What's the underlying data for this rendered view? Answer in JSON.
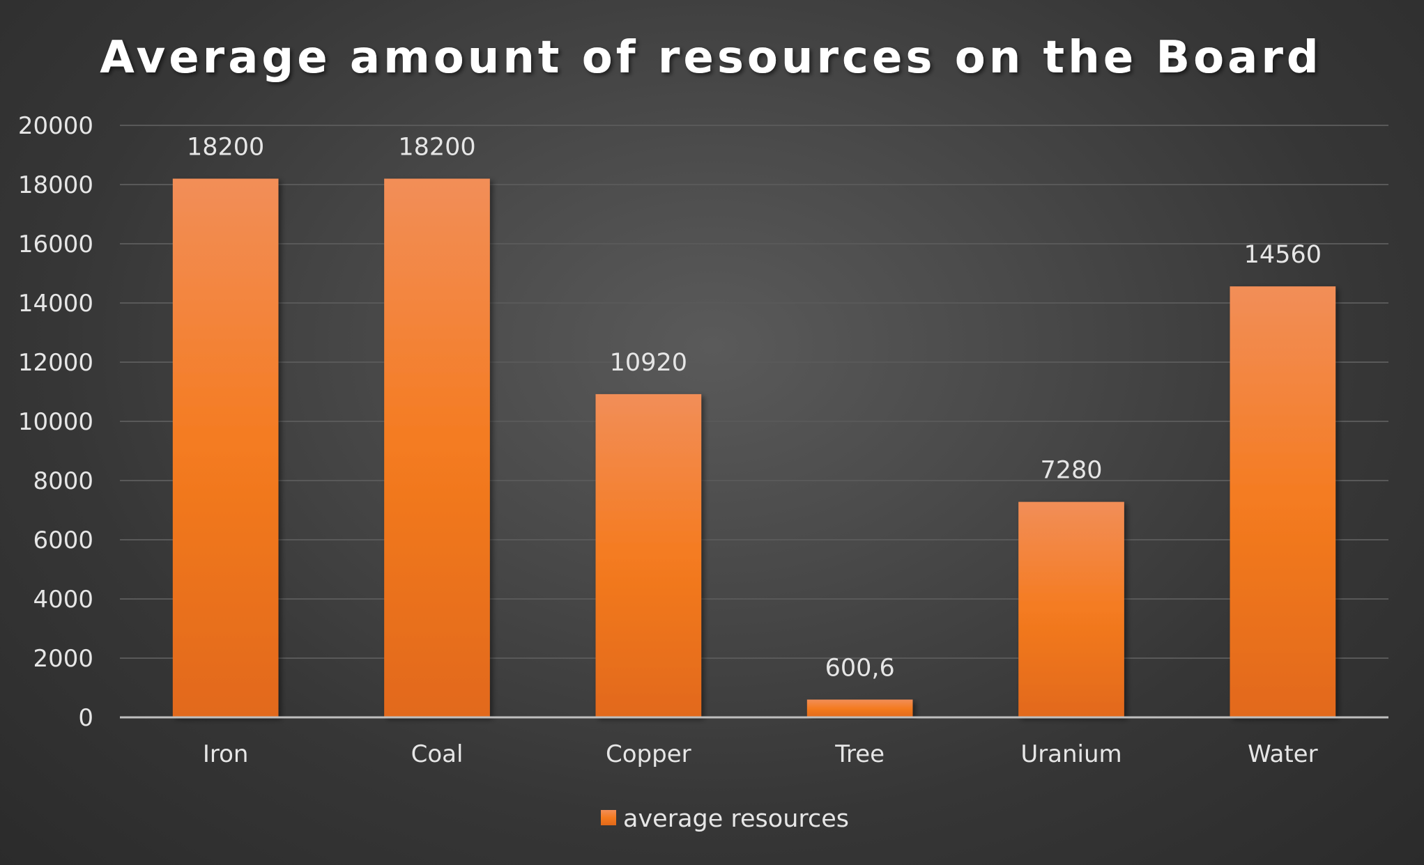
{
  "chart_data": {
    "type": "bar",
    "title": "Average amount of resources on the Board",
    "categories": [
      "Iron",
      "Coal",
      "Copper",
      "Tree",
      "Uranium",
      "Water"
    ],
    "series": [
      {
        "name": "average resources",
        "values": [
          18200,
          18200,
          10920,
          600.6,
          7280,
          14560
        ],
        "data_labels": [
          "18200",
          "18200",
          "10920",
          "600,6",
          "7280",
          "14560"
        ],
        "color": "#f47b20"
      }
    ],
    "ylim": [
      0,
      20000
    ],
    "yticks": [
      0,
      2000,
      4000,
      6000,
      8000,
      10000,
      12000,
      14000,
      16000,
      18000,
      20000
    ],
    "grid": true,
    "legend": "bottom-center",
    "colors": {
      "background": "#3a3a3a",
      "grid": "#595959",
      "axis": "#bfbfbf",
      "bar_top": "#f28e58",
      "bar_mid": "#f47b20",
      "bar_bottom": "#e2691a"
    }
  }
}
